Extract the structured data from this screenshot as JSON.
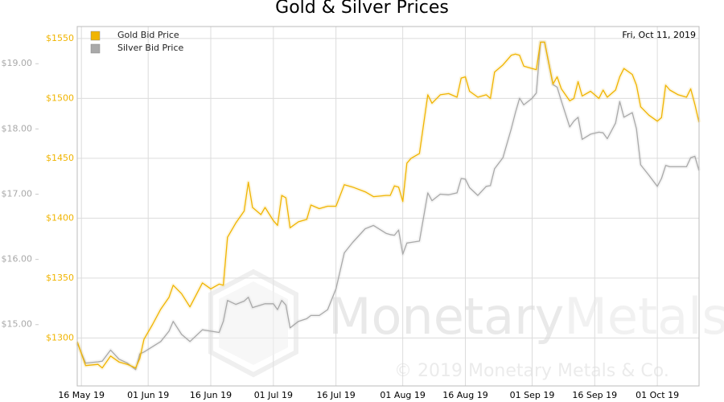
{
  "chart_data": {
    "type": "line",
    "title": "Gold & Silver Prices",
    "date_label": "Fri, Oct 11, 2019",
    "watermark": {
      "brand": [
        "Monetary",
        "Metals"
      ],
      "copyright": "© 2019 Monetary Metals & Co."
    },
    "x": [
      "2019-05-15",
      "2019-05-17",
      "2019-05-20",
      "2019-05-21",
      "2019-05-23",
      "2019-05-25",
      "2019-05-27",
      "2019-05-29",
      "2019-05-30",
      "2019-05-31",
      "2019-06-02",
      "2019-06-04",
      "2019-06-06",
      "2019-06-07",
      "2019-06-09",
      "2019-06-11",
      "2019-06-14",
      "2019-06-16",
      "2019-06-18",
      "2019-06-19",
      "2019-06-20",
      "2019-06-22",
      "2019-06-24",
      "2019-06-25",
      "2019-06-26",
      "2019-06-28",
      "2019-06-29",
      "2019-07-01",
      "2019-07-02",
      "2019-07-03",
      "2019-07-04",
      "2019-07-05",
      "2019-07-07",
      "2019-07-09",
      "2019-07-10",
      "2019-07-12",
      "2019-07-14",
      "2019-07-16",
      "2019-07-18",
      "2019-07-20",
      "2019-07-23",
      "2019-07-25",
      "2019-07-28",
      "2019-07-29",
      "2019-07-30",
      "2019-07-31",
      "2019-08-01",
      "2019-08-02",
      "2019-08-03",
      "2019-08-05",
      "2019-08-07",
      "2019-08-08",
      "2019-08-10",
      "2019-08-12",
      "2019-08-14",
      "2019-08-15",
      "2019-08-16",
      "2019-08-17",
      "2019-08-19",
      "2019-08-21",
      "2019-08-22",
      "2019-08-23",
      "2019-08-25",
      "2019-08-27",
      "2019-08-28",
      "2019-08-29",
      "2019-08-30",
      "2019-09-01",
      "2019-09-02",
      "2019-09-03",
      "2019-09-04",
      "2019-09-06",
      "2019-09-07",
      "2019-09-08",
      "2019-09-10",
      "2019-09-11",
      "2019-09-12",
      "2019-09-13",
      "2019-09-15",
      "2019-09-17",
      "2019-09-18",
      "2019-09-19",
      "2019-09-21",
      "2019-09-22",
      "2019-09-23",
      "2019-09-25",
      "2019-09-26",
      "2019-09-27",
      "2019-09-29",
      "2019-10-01",
      "2019-10-02",
      "2019-10-03",
      "2019-10-04",
      "2019-10-06",
      "2019-10-08",
      "2019-10-09",
      "2019-10-10",
      "2019-10-11"
    ],
    "xlim": [
      "2019-05-15",
      "2019-10-11"
    ],
    "xticks": [
      {
        "value": "2019-05-16",
        "label": "16 May 19"
      },
      {
        "value": "2019-06-01",
        "label": "01 Jun 19"
      },
      {
        "value": "2019-06-16",
        "label": "16 Jun 19"
      },
      {
        "value": "2019-07-01",
        "label": "01 Jul 19"
      },
      {
        "value": "2019-07-16",
        "label": "16 Jul 19"
      },
      {
        "value": "2019-08-01",
        "label": "01 Aug 19"
      },
      {
        "value": "2019-08-16",
        "label": "16 Aug 19"
      },
      {
        "value": "2019-09-01",
        "label": "01 Sep 19"
      },
      {
        "value": "2019-09-16",
        "label": "16 Sep 19"
      },
      {
        "value": "2019-10-01",
        "label": "01 Oct 19"
      }
    ],
    "ylim": [
      1260,
      1560
    ],
    "yticks": [
      {
        "value": 1300,
        "label": "$1300"
      },
      {
        "value": 1350,
        "label": "$1350"
      },
      {
        "value": 1400,
        "label": "$1400"
      },
      {
        "value": 1450,
        "label": "$1450"
      },
      {
        "value": 1500,
        "label": "$1500"
      },
      {
        "value": 1550,
        "label": "$1550"
      }
    ],
    "y2lim": [
      14.06,
      19.57
    ],
    "y2ticks": [
      {
        "value": 15,
        "label": "$15.00"
      },
      {
        "value": 16,
        "label": "$16.00"
      },
      {
        "value": 17,
        "label": "$17.00"
      },
      {
        "value": 18,
        "label": "$18.00"
      },
      {
        "value": 19,
        "label": "$19.00"
      }
    ],
    "grid": true,
    "legend": "upper left",
    "series": [
      {
        "name": "Gold Bid Price",
        "color": "#f0b400",
        "axis": "y",
        "values": [
          1297,
          1277,
          1278,
          1275,
          1285,
          1280,
          1278,
          1275,
          1283,
          1299,
          1311,
          1324,
          1334,
          1344,
          1337,
          1326,
          1346,
          1341,
          1345,
          1344,
          1384,
          1396,
          1406,
          1430,
          1409,
          1403,
          1409,
          1398,
          1394,
          1419,
          1417,
          1392,
          1397,
          1399,
          1411,
          1408,
          1410,
          1410,
          1428,
          1426,
          1422,
          1418,
          1419,
          1419,
          1427,
          1426,
          1414,
          1446,
          1450,
          1454,
          1503,
          1496,
          1503,
          1504,
          1501,
          1517,
          1518,
          1506,
          1501,
          1503,
          1500,
          1522,
          1528,
          1536,
          1537,
          1536,
          1527,
          1525,
          1524,
          1547,
          1547,
          1512,
          1518,
          1508,
          1498,
          1500,
          1514,
          1502,
          1506,
          1500,
          1507,
          1501,
          1507,
          1518,
          1525,
          1520,
          1511,
          1493,
          1486,
          1481,
          1484,
          1511,
          1507,
          1503,
          1501,
          1508,
          1495,
          1480
        ]
      },
      {
        "name": "Silver Bid Price",
        "color": "#a9a9a9",
        "axis": "y2",
        "values": [
          14.72,
          14.41,
          14.43,
          14.44,
          14.61,
          14.47,
          14.41,
          14.31,
          14.55,
          14.58,
          14.66,
          14.74,
          14.9,
          15.05,
          14.85,
          14.74,
          14.92,
          14.9,
          14.88,
          15.05,
          15.37,
          15.31,
          15.36,
          15.42,
          15.26,
          15.3,
          15.32,
          15.32,
          15.23,
          15.37,
          15.3,
          14.95,
          15.05,
          15.09,
          15.14,
          15.14,
          15.23,
          15.55,
          16.1,
          16.26,
          16.47,
          16.52,
          16.4,
          16.38,
          16.37,
          16.45,
          16.08,
          16.25,
          16.26,
          16.28,
          17.02,
          16.9,
          17.0,
          16.99,
          17.02,
          17.24,
          17.23,
          17.1,
          16.98,
          17.12,
          17.13,
          17.39,
          17.56,
          18.0,
          18.25,
          18.47,
          18.37,
          18.47,
          18.55,
          19.33,
          19.33,
          18.68,
          18.64,
          18.43,
          18.03,
          18.12,
          18.18,
          17.84,
          17.92,
          17.95,
          17.94,
          17.85,
          18.09,
          18.42,
          18.18,
          18.25,
          18.0,
          17.45,
          17.29,
          17.12,
          17.24,
          17.44,
          17.42,
          17.42,
          17.42,
          17.56,
          17.58,
          17.36
        ]
      }
    ]
  }
}
